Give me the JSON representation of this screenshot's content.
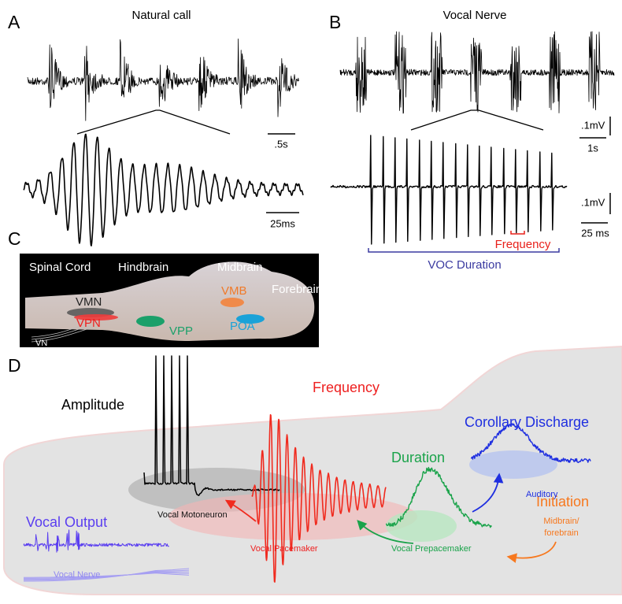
{
  "panel_a": {
    "label": "A",
    "title": "Natural call",
    "scale_bar_top": ".5s",
    "scale_bar_bottom": "25ms"
  },
  "panel_b": {
    "label": "B",
    "title": "Vocal Nerve",
    "scale_top_amplitude": ".1mV",
    "scale_top_time": "1s",
    "scale_bottom_amplitude": ".1mV",
    "scale_bottom_time": "25 ms",
    "frequency_label": "Frequency",
    "duration_label": "VOC Duration"
  },
  "panel_c": {
    "label": "C",
    "regions": [
      "Spinal Cord",
      "Hindbrain",
      "Midbrain",
      "Forebrain"
    ],
    "nuclei": [
      "VMN",
      "VPN",
      "VPP",
      "VMB",
      "POA"
    ],
    "nerve": "VN"
  },
  "panel_d": {
    "label": "D",
    "amplitude": "Amplitude",
    "frequency": "Frequency",
    "corollary_discharge": "Corollary Discharge",
    "duration": "Duration",
    "initiation": "Initiation",
    "initiation_source": [
      "Midbrain/",
      "forebrain"
    ],
    "auditory": "Auditory",
    "vocal_motoneuron": "Vocal Motoneuron",
    "vocal_pacemaker": "Vocal Pacemaker",
    "vocal_prepacemaker": "Vocal Prepacemaker",
    "vocal_output": "Vocal Output",
    "vocal_nerve": "Vocal Nerve"
  }
}
